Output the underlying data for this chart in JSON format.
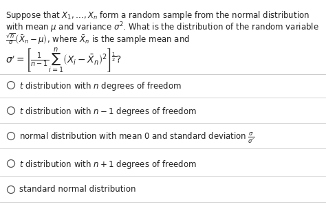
{
  "bg_color": "#ffffff",
  "text_color": "#222222",
  "figsize": [
    4.74,
    3.1
  ],
  "dpi": 100,
  "q_line1": "Suppose that $X_1, \\ldots, X_n$ form a random sample from the normal distribution",
  "q_line2": "with mean $\\mu$ and variance $\\sigma^2$. What is the distribution of the random variable",
  "q_line3": "$\\frac{\\sqrt{n}}{\\sigma}\\left(\\bar{X}_n - \\mu\\right)$, where $\\bar{X}_n$ is the sample mean and",
  "q_line4": "$\\sigma' = \\left[\\frac{1}{n-1}\\sum_{i=1}^{n}\\left(X_i - \\bar{X}_n\\right)^2\\right]^{\\frac{1}{2}}$?",
  "options": [
    "$t$ distribution with $n$ degrees of freedom",
    "$t$ distribution with $n-1$ degrees of freedom",
    "normal distribution with mean $0$ and standard deviation $\\frac{\\sigma}{\\sigma'}$",
    "$t$ distribution with $n+1$ degrees of freedom",
    "standard normal distribution"
  ],
  "sep_color": "#cccccc",
  "circle_color": "#555555",
  "fontsize_text": 8.5,
  "fontsize_math": 8.5,
  "fontsize_option": 8.5
}
